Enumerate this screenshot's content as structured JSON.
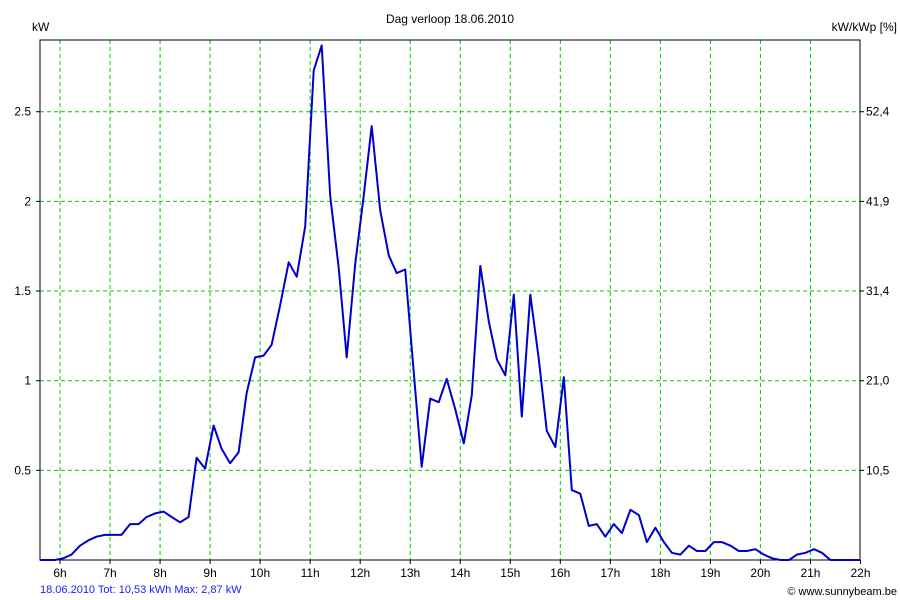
{
  "chart_data": {
    "type": "line",
    "title": "Dag  verloop 18.06.2010",
    "ylabel_left": "kW",
    "ylabel_right": "kW/kWp [%]",
    "xlim": [
      5.6,
      21.99
    ],
    "ylim": [
      0,
      2.9
    ],
    "x_ticks": [
      6,
      7,
      8,
      9,
      10,
      11,
      12,
      13,
      14,
      15,
      16,
      17,
      18,
      19,
      20,
      21,
      22
    ],
    "x_tick_labels": [
      "6h",
      "7h",
      "8h",
      "9h",
      "10h",
      "11h",
      "12h",
      "13h",
      "14h",
      "15h",
      "16h",
      "17h",
      "18h",
      "19h",
      "20h",
      "21h",
      "22h"
    ],
    "y_ticks": [
      0.5,
      1,
      1.5,
      2,
      2.5
    ],
    "y_tick_labels": [
      "0.5",
      "1",
      "1.5",
      "2",
      "2.5"
    ],
    "y2_tick_labels": [
      "10,5",
      "21,0",
      "31,4",
      "41,9",
      "52,4"
    ],
    "grid": true,
    "series": [
      {
        "color": "#0000cc",
        "x": [
          5.6,
          5.9,
          6.07,
          6.23,
          6.4,
          6.57,
          6.73,
          6.9,
          7.07,
          7.23,
          7.4,
          7.57,
          7.73,
          7.9,
          8.07,
          8.23,
          8.4,
          8.57,
          8.73,
          8.9,
          9.07,
          9.23,
          9.4,
          9.57,
          9.73,
          9.9,
          10.07,
          10.23,
          10.4,
          10.57,
          10.73,
          10.9,
          11.07,
          11.23,
          11.4,
          11.57,
          11.73,
          11.9,
          12.07,
          12.23,
          12.4,
          12.57,
          12.73,
          12.9,
          13.07,
          13.23,
          13.4,
          13.57,
          13.73,
          13.9,
          14.07,
          14.23,
          14.4,
          14.57,
          14.73,
          14.9,
          15.07,
          15.23,
          15.4,
          15.57,
          15.73,
          15.9,
          16.07,
          16.23,
          16.4,
          16.57,
          16.73,
          16.9,
          17.07,
          17.23,
          17.4,
          17.57,
          17.73,
          17.9,
          18.07,
          18.23,
          18.4,
          18.57,
          18.73,
          18.9,
          19.07,
          19.23,
          19.4,
          19.57,
          19.73,
          19.9,
          20.07,
          20.23,
          20.4,
          20.57,
          20.73,
          20.9,
          21.07,
          21.23,
          21.4,
          21.57,
          21.73,
          21.99
        ],
        "y": [
          0,
          0,
          0.01,
          0.03,
          0.08,
          0.11,
          0.13,
          0.14,
          0.14,
          0.14,
          0.2,
          0.2,
          0.24,
          0.26,
          0.27,
          0.24,
          0.21,
          0.24,
          0.57,
          0.51,
          0.75,
          0.62,
          0.54,
          0.6,
          0.93,
          1.13,
          1.14,
          1.2,
          1.42,
          1.66,
          1.58,
          1.86,
          2.73,
          2.87,
          2.03,
          1.63,
          1.13,
          1.65,
          2.03,
          2.42,
          1.95,
          1.7,
          1.6,
          1.62,
          1.05,
          0.52,
          0.9,
          0.88,
          1.01,
          0.84,
          0.65,
          0.92,
          1.64,
          1.33,
          1.12,
          1.03,
          1.48,
          0.8,
          1.48,
          1.12,
          0.72,
          0.63,
          1.02,
          0.39,
          0.37,
          0.19,
          0.2,
          0.13,
          0.2,
          0.15,
          0.28,
          0.25,
          0.1,
          0.18,
          0.1,
          0.04,
          0.03,
          0.08,
          0.05,
          0.05,
          0.1,
          0.1,
          0.08,
          0.05,
          0.05,
          0.06,
          0.03,
          0.01,
          0,
          0,
          0.03,
          0.04,
          0.06,
          0.04,
          0,
          0,
          0,
          0
        ]
      }
    ]
  },
  "footer": {
    "summary": "18.06.2010 Tot: 10,53 kWh Max: 2,87 kW",
    "credit": "© www.sunnybeam.be"
  }
}
